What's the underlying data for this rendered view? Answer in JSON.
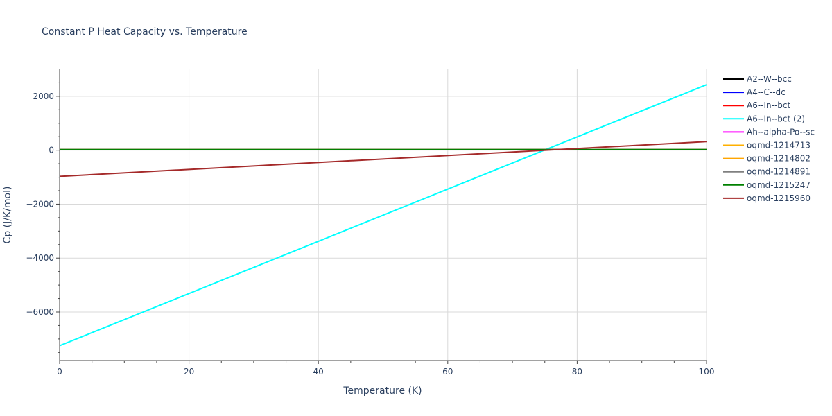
{
  "chart_data": {
    "type": "line",
    "title": "Constant P Heat Capacity vs. Temperature",
    "xlabel": "Temperature (K)",
    "ylabel": "Cp (J/K/mol)",
    "xlim": [
      0,
      100
    ],
    "ylim": [
      -7800,
      3000
    ],
    "xticks": [
      0,
      20,
      40,
      60,
      80,
      100
    ],
    "xtick_labels": [
      "0",
      "20",
      "40",
      "60",
      "80",
      "100"
    ],
    "yticks": [
      -6000,
      -4000,
      -2000,
      0,
      2000
    ],
    "ytick_labels": [
      "−6000",
      "−4000",
      "−2000",
      "0",
      "2000"
    ],
    "grid": true,
    "legend_position": "right",
    "series": [
      {
        "name": "A2--W--bcc",
        "color": "#000000",
        "x": [
          0,
          100
        ],
        "y": [
          20,
          20
        ]
      },
      {
        "name": "A4--C--dc",
        "color": "#0000ff",
        "x": [
          0,
          100
        ],
        "y": [
          20,
          20
        ]
      },
      {
        "name": "A6--In--bct",
        "color": "#ff0000",
        "x": [
          0,
          100
        ],
        "y": [
          20,
          20
        ]
      },
      {
        "name": "A6--In--bct (2)",
        "color": "#00ffff",
        "x": [
          0,
          100
        ],
        "y": [
          -7250,
          2430
        ]
      },
      {
        "name": "Ah--alpha-Po--sc",
        "color": "#ff00ff",
        "x": [
          0,
          100
        ],
        "y": [
          20,
          20
        ]
      },
      {
        "name": "oqmd-1214713",
        "color": "#ffb000",
        "x": [
          0,
          100
        ],
        "y": [
          20,
          20
        ]
      },
      {
        "name": "oqmd-1214802",
        "color": "#ffa500",
        "x": [
          0,
          100
        ],
        "y": [
          20,
          20
        ]
      },
      {
        "name": "oqmd-1214891",
        "color": "#808080",
        "x": [
          0,
          100
        ],
        "y": [
          20,
          20
        ]
      },
      {
        "name": "oqmd-1215247",
        "color": "#008000",
        "x": [
          0,
          100
        ],
        "y": [
          25,
          25
        ]
      },
      {
        "name": "oqmd-1215960",
        "color": "#a52a2a",
        "x": [
          0,
          100
        ],
        "y": [
          -970,
          320
        ]
      }
    ]
  }
}
